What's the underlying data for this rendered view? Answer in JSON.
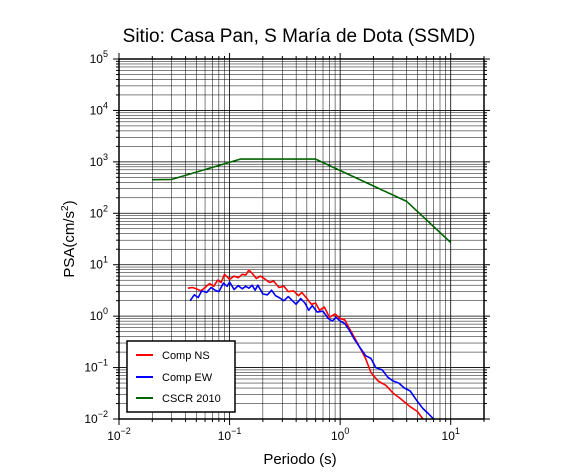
{
  "chart_data": {
    "type": "line",
    "title": "Sitio: Casa Pan, S María de Dota (SSMD)",
    "xlabel": "Periodo (s)",
    "ylabel_main": "PSA(cm/s",
    "ylabel_sup": "2",
    "ylabel_end": ")",
    "x_scale": "log",
    "y_scale": "log",
    "xlim": [
      0.01,
      20
    ],
    "ylim": [
      0.01,
      100000
    ],
    "grid": true,
    "legend_position": "bottom-left",
    "x_ticks": [
      {
        "base": "10",
        "exp": "−2",
        "value": 0.01
      },
      {
        "base": "10",
        "exp": "−1",
        "value": 0.1
      },
      {
        "base": "10",
        "exp": "0",
        "value": 1
      },
      {
        "base": "10",
        "exp": "1",
        "value": 10
      }
    ],
    "y_ticks": [
      {
        "base": "10",
        "exp": "−2",
        "value": 0.01
      },
      {
        "base": "10",
        "exp": "−1",
        "value": 0.1
      },
      {
        "base": "10",
        "exp": "0",
        "value": 1
      },
      {
        "base": "10",
        "exp": "1",
        "value": 10
      },
      {
        "base": "10",
        "exp": "2",
        "value": 100
      },
      {
        "base": "10",
        "exp": "3",
        "value": 1000
      },
      {
        "base": "10",
        "exp": "4",
        "value": 10000
      },
      {
        "base": "10",
        "exp": "5",
        "value": 100000
      }
    ],
    "series": [
      {
        "name": "Comp NS",
        "color": "#ff0000",
        "points": [
          [
            0.042,
            3.5
          ],
          [
            0.046,
            3.6
          ],
          [
            0.05,
            3.4
          ],
          [
            0.055,
            3.1
          ],
          [
            0.06,
            3.6
          ],
          [
            0.066,
            4.3
          ],
          [
            0.072,
            3.8
          ],
          [
            0.078,
            5.0
          ],
          [
            0.084,
            4.5
          ],
          [
            0.09,
            6.5
          ],
          [
            0.1,
            5.2
          ],
          [
            0.11,
            6.0
          ],
          [
            0.12,
            5.6
          ],
          [
            0.13,
            6.5
          ],
          [
            0.14,
            6.3
          ],
          [
            0.15,
            7.9
          ],
          [
            0.16,
            6.8
          ],
          [
            0.175,
            5.4
          ],
          [
            0.19,
            6.0
          ],
          [
            0.21,
            5.2
          ],
          [
            0.23,
            4.5
          ],
          [
            0.25,
            4.8
          ],
          [
            0.28,
            3.6
          ],
          [
            0.31,
            3.8
          ],
          [
            0.34,
            3.0
          ],
          [
            0.38,
            3.1
          ],
          [
            0.42,
            2.5
          ],
          [
            0.45,
            2.9
          ],
          [
            0.5,
            2.2
          ],
          [
            0.55,
            1.7
          ],
          [
            0.6,
            1.8
          ],
          [
            0.65,
            1.3
          ],
          [
            0.72,
            1.5
          ],
          [
            0.8,
            0.95
          ],
          [
            0.9,
            1.1
          ],
          [
            1.0,
            0.9
          ],
          [
            1.1,
            0.85
          ],
          [
            1.2,
            0.6
          ],
          [
            1.35,
            0.38
          ],
          [
            1.5,
            0.25
          ],
          [
            1.7,
            0.15
          ],
          [
            1.9,
            0.08
          ],
          [
            2.2,
            0.055
          ],
          [
            2.6,
            0.045
          ],
          [
            3.0,
            0.032
          ],
          [
            3.5,
            0.025
          ],
          [
            4.2,
            0.018
          ],
          [
            5.0,
            0.014
          ],
          [
            5.6,
            0.01
          ]
        ]
      },
      {
        "name": "Comp EW",
        "color": "#0000ff",
        "points": [
          [
            0.044,
            2.0
          ],
          [
            0.048,
            2.6
          ],
          [
            0.052,
            2.3
          ],
          [
            0.056,
            3.1
          ],
          [
            0.062,
            2.9
          ],
          [
            0.068,
            3.6
          ],
          [
            0.074,
            3.2
          ],
          [
            0.08,
            3.0
          ],
          [
            0.088,
            4.4
          ],
          [
            0.095,
            3.8
          ],
          [
            0.1,
            4.6
          ],
          [
            0.11,
            3.3
          ],
          [
            0.12,
            3.9
          ],
          [
            0.13,
            3.4
          ],
          [
            0.14,
            3.8
          ],
          [
            0.15,
            3.5
          ],
          [
            0.16,
            4.0
          ],
          [
            0.17,
            3.2
          ],
          [
            0.18,
            4.0
          ],
          [
            0.2,
            2.7
          ],
          [
            0.22,
            2.6
          ],
          [
            0.24,
            3.2
          ],
          [
            0.26,
            2.5
          ],
          [
            0.28,
            2.3
          ],
          [
            0.31,
            2.0
          ],
          [
            0.34,
            2.4
          ],
          [
            0.37,
            2.0
          ],
          [
            0.4,
            1.7
          ],
          [
            0.44,
            2.2
          ],
          [
            0.48,
            1.8
          ],
          [
            0.52,
            1.3
          ],
          [
            0.56,
            1.6
          ],
          [
            0.62,
            1.2
          ],
          [
            0.7,
            1.25
          ],
          [
            0.78,
            0.9
          ],
          [
            0.85,
            0.8
          ],
          [
            0.92,
            0.95
          ],
          [
            1.0,
            0.8
          ],
          [
            1.1,
            0.72
          ],
          [
            1.2,
            0.55
          ],
          [
            1.35,
            0.35
          ],
          [
            1.5,
            0.25
          ],
          [
            1.7,
            0.17
          ],
          [
            1.9,
            0.15
          ],
          [
            2.1,
            0.1
          ],
          [
            2.4,
            0.09
          ],
          [
            2.7,
            0.065
          ],
          [
            3.0,
            0.055
          ],
          [
            3.4,
            0.05
          ],
          [
            3.8,
            0.04
          ],
          [
            4.3,
            0.035
          ],
          [
            5.0,
            0.022
          ],
          [
            5.6,
            0.016
          ],
          [
            6.2,
            0.013
          ],
          [
            7.0,
            0.01
          ]
        ]
      },
      {
        "name": "CSCR 2010",
        "color": "#006400",
        "points": [
          [
            0.02,
            450
          ],
          [
            0.03,
            455
          ],
          [
            0.125,
            1130
          ],
          [
            0.6,
            1130
          ],
          [
            4.0,
            170
          ],
          [
            10.0,
            27
          ]
        ]
      }
    ]
  }
}
